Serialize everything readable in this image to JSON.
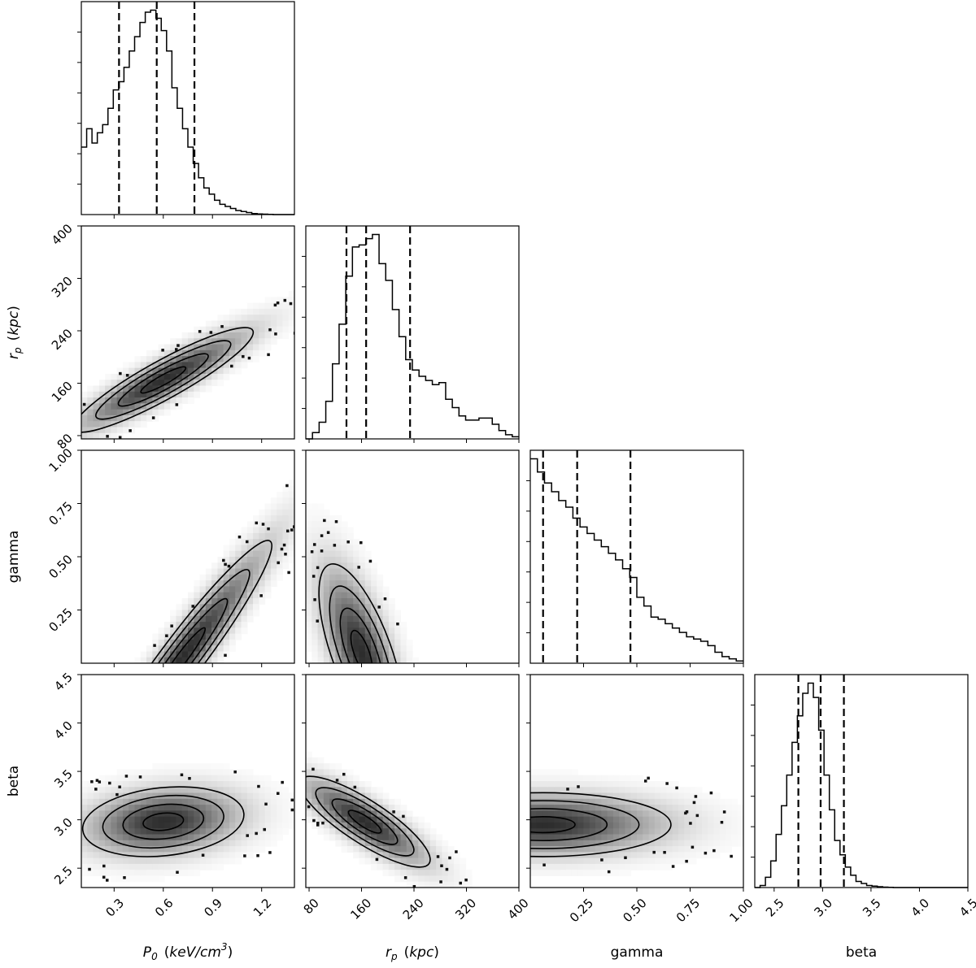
{
  "chart_data": {
    "type": "corner",
    "parameters": [
      {
        "name": "P0",
        "label_main": "P",
        "label_sub": "0",
        "label_unit": "keV/cm",
        "label_sup": "3",
        "range": [
          0.1,
          1.4
        ],
        "ticks": [
          0.3,
          0.6,
          0.9,
          1.2
        ],
        "tick_labels": [
          "0.3",
          "0.6",
          "0.9",
          "1.2"
        ],
        "quantiles": [
          0.33,
          0.56,
          0.79
        ]
      },
      {
        "name": "rp",
        "label_main": "r",
        "label_sub": "p",
        "label_unit": "kpc",
        "range": [
          75,
          400
        ],
        "ticks": [
          80,
          160,
          240,
          320,
          400
        ],
        "tick_labels": [
          "80",
          "160",
          "240",
          "320",
          "400"
        ],
        "quantiles": [
          137,
          167,
          234
        ]
      },
      {
        "name": "gamma",
        "label_main": "gamma",
        "range": [
          0.0,
          1.0
        ],
        "ticks": [
          0.25,
          0.5,
          0.75,
          1.0
        ],
        "tick_labels": [
          "0.25",
          "0.50",
          "0.75",
          "1.00"
        ],
        "quantiles": [
          0.06,
          0.22,
          0.47
        ]
      },
      {
        "name": "beta",
        "label_main": "beta",
        "range": [
          2.3,
          4.5
        ],
        "ticks": [
          2.5,
          3.0,
          3.5,
          4.0,
          4.5
        ],
        "tick_labels": [
          "2.5",
          "3.0",
          "3.5",
          "4.0",
          "4.5"
        ],
        "quantiles": [
          2.75,
          2.98,
          3.22
        ]
      }
    ],
    "histograms": [
      {
        "param": "P0",
        "bins_start": 0.1,
        "bin_width": 0.0325,
        "values": [
          0.33,
          0.42,
          0.35,
          0.4,
          0.44,
          0.52,
          0.61,
          0.65,
          0.72,
          0.8,
          0.87,
          0.94,
          0.99,
          1.0,
          0.96,
          0.9,
          0.8,
          0.62,
          0.52,
          0.42,
          0.33,
          0.25,
          0.18,
          0.13,
          0.1,
          0.07,
          0.05,
          0.04,
          0.03,
          0.02,
          0.015,
          0.01,
          0.005,
          0.003,
          0.002,
          0.001,
          0.0,
          0.0,
          0.0,
          0.0
        ]
      },
      {
        "param": "rp",
        "bins_start": 75,
        "bin_width": 10.15625,
        "values": [
          0.0,
          0.03,
          0.08,
          0.18,
          0.36,
          0.55,
          0.78,
          0.92,
          0.93,
          0.96,
          0.98,
          0.84,
          0.76,
          0.62,
          0.49,
          0.38,
          0.33,
          0.3,
          0.28,
          0.26,
          0.27,
          0.19,
          0.15,
          0.11,
          0.09,
          0.09,
          0.1,
          0.1,
          0.07,
          0.04,
          0.02,
          0.01
        ]
      },
      {
        "param": "gamma",
        "bins_start": 0.0,
        "bin_width": 0.03333,
        "values": [
          0.93,
          0.87,
          0.82,
          0.78,
          0.74,
          0.71,
          0.66,
          0.62,
          0.59,
          0.56,
          0.53,
          0.5,
          0.47,
          0.43,
          0.39,
          0.3,
          0.26,
          0.21,
          0.2,
          0.18,
          0.16,
          0.14,
          0.12,
          0.11,
          0.1,
          0.08,
          0.05,
          0.03,
          0.02,
          0.01
        ]
      },
      {
        "param": "beta",
        "bins_start": 2.3,
        "bin_width": 0.055,
        "values": [
          0.0,
          0.01,
          0.05,
          0.13,
          0.26,
          0.4,
          0.55,
          0.71,
          0.84,
          0.95,
          1.0,
          0.93,
          0.77,
          0.55,
          0.38,
          0.23,
          0.16,
          0.1,
          0.06,
          0.03,
          0.02,
          0.01,
          0.007,
          0.004,
          0.002,
          0.001,
          0.0,
          0.0,
          0.0,
          0.0,
          0.0,
          0.0,
          0.0,
          0.0,
          0.0,
          0.0,
          0.0,
          0.0,
          0.0,
          0.0
        ]
      }
    ],
    "joint_distributions": [
      {
        "x": "P0",
        "y": "rp",
        "mode": [
          0.6,
          165
        ],
        "major_axis_angle_deg": -29.0,
        "sigma_major": 0.24,
        "sigma_minor": 0.045
      },
      {
        "x": "P0",
        "y": "gamma",
        "mode": [
          0.72,
          0.03
        ],
        "major_axis_angle_deg": -53.0,
        "sigma_major": 0.34,
        "sigma_minor": 0.05
      },
      {
        "x": "P0",
        "y": "beta",
        "mode": [
          0.6,
          2.98
        ],
        "major_axis_angle_deg": -6.0,
        "sigma_major": 0.19,
        "sigma_minor": 0.08
      },
      {
        "x": "rp",
        "y": "gamma",
        "mode": [
          160,
          0.05
        ],
        "major_axis_angle_deg": 70.0,
        "sigma_major": 0.22,
        "sigma_minor": 0.07
      },
      {
        "x": "rp",
        "y": "beta",
        "mode": [
          165,
          2.98
        ],
        "major_axis_angle_deg": 33.0,
        "sigma_major": 0.18,
        "sigma_minor": 0.05
      },
      {
        "x": "gamma",
        "y": "beta",
        "mode": [
          0.06,
          2.95
        ],
        "major_axis_angle_deg": 0.0,
        "sigma_major": 0.3,
        "sigma_minor": 0.075
      }
    ],
    "contour_levels": [
      "0.5 sigma",
      "1 sigma",
      "1.5 sigma",
      "2 sigma"
    ],
    "xlabels": [
      "P0 (keV/cm3)",
      "rp (kpc)",
      "gamma",
      "beta"
    ],
    "ylabels": [
      "rp (kpc)",
      "gamma",
      "beta"
    ],
    "grid": false,
    "legend": "none"
  }
}
